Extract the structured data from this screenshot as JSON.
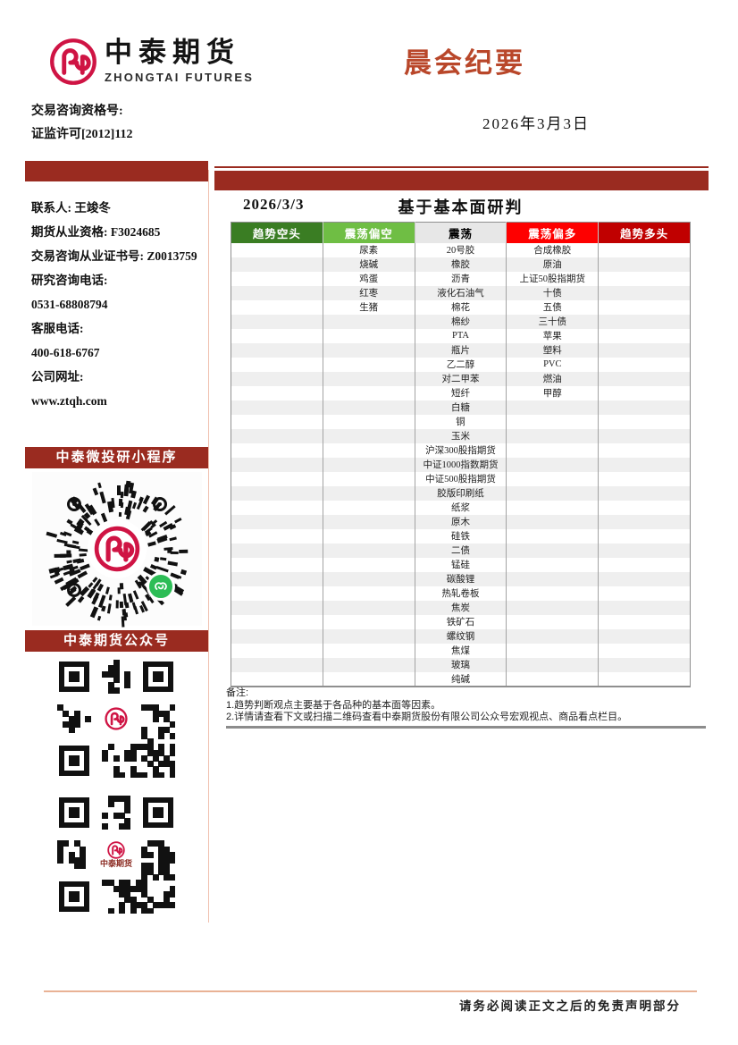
{
  "header": {
    "brand_cn": "中泰期货",
    "brand_en": "ZHONGTAI FUTURES",
    "title": "晨会纪要",
    "qualification_label": "交易咨询资格号:",
    "qualification_value": "证监许可[2012]112",
    "date": "2026年3月3日"
  },
  "sidebar": {
    "contact": [
      "联系人: 王竣冬",
      "期货从业资格: F3024685",
      "交易咨询从业证书号: Z0013759",
      "研究咨询电话:",
      "0531-68808794",
      "客服电话:",
      "400-618-6767",
      "公司网址:",
      "www.ztqh.com"
    ],
    "miniprogram_title": "中泰微投研小程序",
    "wechat_title": "中泰期货公众号",
    "qr_center_text": "中泰期货"
  },
  "main": {
    "date": "2026/3/3",
    "table_title": "基于基本面研判",
    "table": {
      "row_count": 31,
      "columns": [
        {
          "label": "趋势空头",
          "color": "#3a7d23",
          "text_color": "#ffffff",
          "items": []
        },
        {
          "label": "震荡偏空",
          "color": "#6fbe44",
          "text_color": "#ffffff",
          "items": [
            "尿素",
            "烧碱",
            "鸡蛋",
            "红枣",
            "生猪"
          ]
        },
        {
          "label": "震荡",
          "color": "#e7e7e7",
          "text_color": "#000000",
          "items": [
            "20号胶",
            "橡胶",
            "沥青",
            "液化石油气",
            "棉花",
            "棉纱",
            "PTA",
            "瓶片",
            "乙二醇",
            "对二甲苯",
            "短纤",
            "白糖",
            "铜",
            "玉米",
            "沪深300股指期货",
            "中证1000指数期货",
            "中证500股指期货",
            "胶版印刷纸",
            "纸浆",
            "原木",
            "硅铁",
            "二债",
            "锰硅",
            "碳酸锂",
            "热轧卷板",
            "焦炭",
            "铁矿石",
            "螺纹钢",
            "焦煤",
            "玻璃",
            "纯碱"
          ]
        },
        {
          "label": "震荡偏多",
          "color": "#fe0000",
          "text_color": "#ffffff",
          "items": [
            "合成橡胶",
            "原油",
            "上证50股指期货",
            "十债",
            "五债",
            "三十债",
            "苹果",
            "塑料",
            "PVC",
            "燃油",
            "甲醇"
          ]
        },
        {
          "label": "趋势多头",
          "color": "#c00000",
          "text_color": "#ffffff",
          "items": []
        }
      ]
    },
    "notes": [
      "备注:",
      "1.趋势判断观点主要基于各品种的基本面等因素。",
      "2.详情请查看下文或扫描二维码查看中泰期货股份有限公司公众号宏观视点、商品看点栏目。"
    ]
  },
  "footer": {
    "disclaimer": "请务必阅读正文之后的免责声明部分"
  },
  "colors": {
    "accent_dark_red": "#9a2b20",
    "title_red": "#b9472a",
    "logo_red": "#cf1444",
    "trend_short": "#3a7d23",
    "osc_short": "#6fbe44",
    "oscillate": "#e7e7e7",
    "osc_long": "#fe0000",
    "trend_long": "#c00000",
    "stripe": "#efefef",
    "wechat_green": "#2dbd56"
  }
}
